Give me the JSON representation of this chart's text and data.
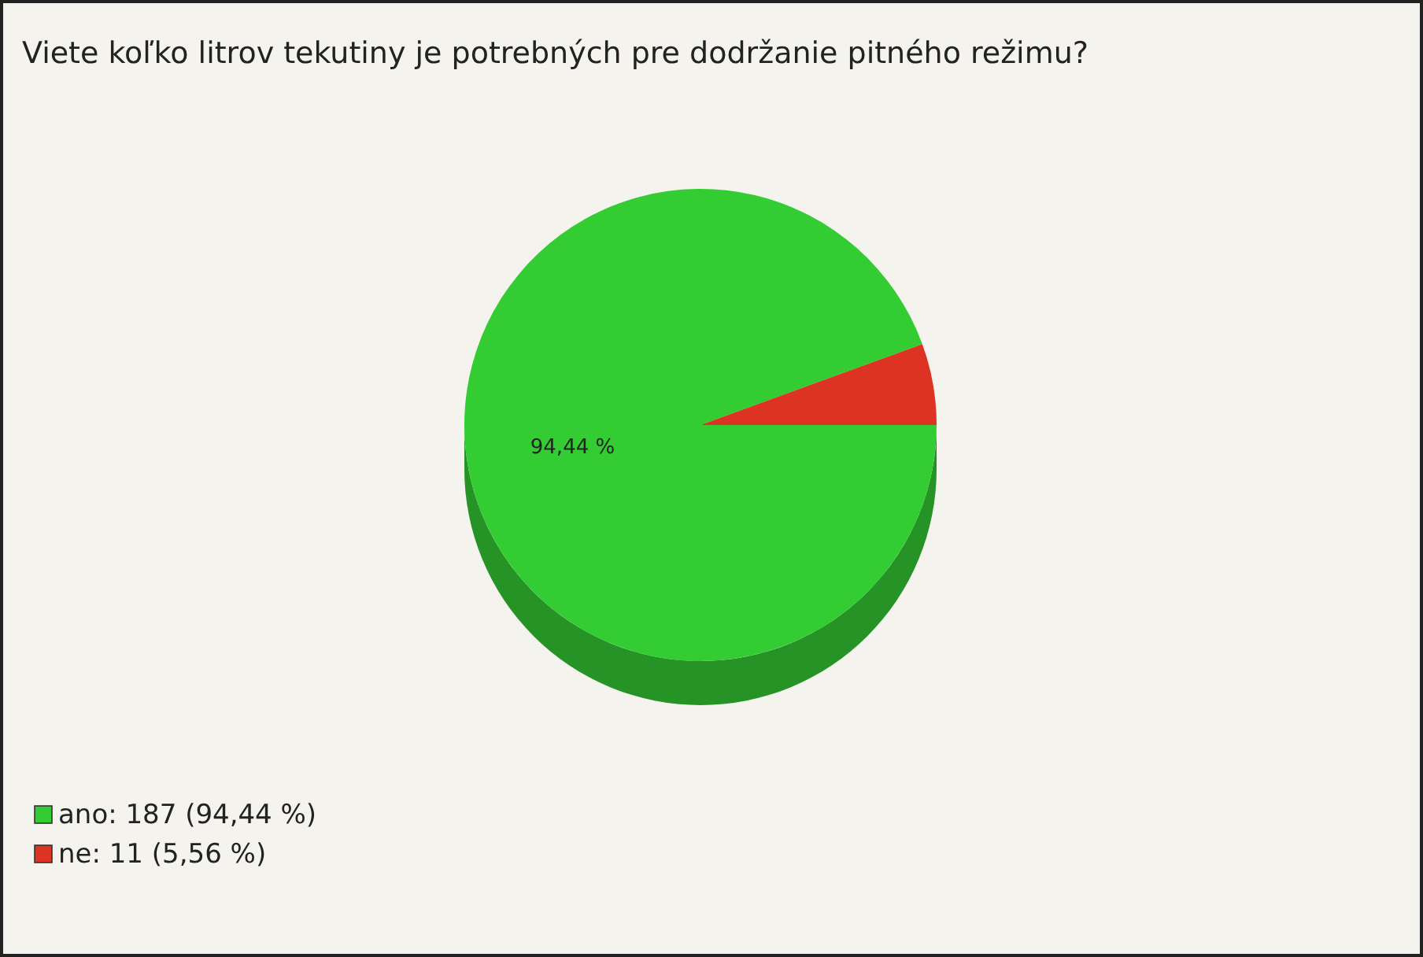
{
  "chart_data": {
    "type": "pie",
    "title": "Viete koľko litrov tekutiny je potrebných pre dodržanie pitného režimu?",
    "categories": [
      "ano: 187 (94,44 %)",
      "ne: 11 (5,56 %)"
    ],
    "values": [
      94.44,
      5.56
    ],
    "colors": [
      "#33cc33",
      "#dd3322"
    ],
    "value_labels": [
      "94,44 %",
      null
    ],
    "legend": "bottom left"
  }
}
